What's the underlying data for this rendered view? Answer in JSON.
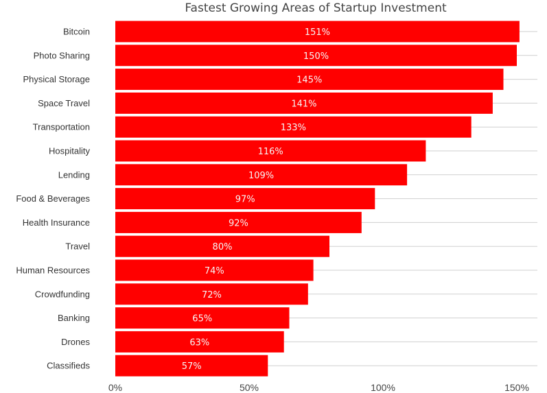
{
  "chart_data": {
    "type": "bar",
    "orientation": "horizontal",
    "title": "Fastest Growing Areas of Startup Investment",
    "xlabel": "",
    "ylabel": "",
    "categories": [
      "Bitcoin",
      "Photo Sharing",
      "Physical Storage",
      "Space Travel",
      "Transportation",
      "Hospitality",
      "Lending",
      "Food & Beverages",
      "Health Insurance",
      "Travel",
      "Human Resources",
      "Crowdfunding",
      "Banking",
      "Drones",
      "Classifieds"
    ],
    "values": [
      151,
      150,
      145,
      141,
      133,
      116,
      109,
      97,
      92,
      80,
      74,
      72,
      65,
      63,
      57
    ],
    "value_labels": [
      "151%",
      "150%",
      "145%",
      "141%",
      "133%",
      "116%",
      "109%",
      "97%",
      "92%",
      "80%",
      "74%",
      "72%",
      "65%",
      "63%",
      "57%"
    ],
    "xlim": [
      0,
      150
    ],
    "xticks": [
      0,
      50,
      100,
      150
    ],
    "xtick_labels": [
      "0%",
      "50%",
      "100%",
      "150%"
    ],
    "grid": "horizontal",
    "legend": "none",
    "colors": {
      "bar": "#ff0000",
      "bar_text": "#f6f6f6",
      "grid": "#cfcfcf",
      "title": "#444444",
      "axis_text": "#333333"
    }
  }
}
